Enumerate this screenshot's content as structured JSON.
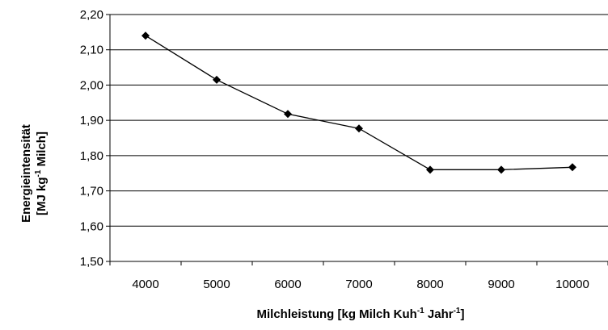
{
  "chart_data": {
    "type": "line",
    "x": [
      4000,
      5000,
      6000,
      7000,
      8000,
      9000,
      10000
    ],
    "x_tick_labels": [
      "4000",
      "5000",
      "6000",
      "7000",
      "8000",
      "9000",
      "10000"
    ],
    "series": [
      {
        "values": [
          2.14,
          2.015,
          1.918,
          1.877,
          1.76,
          1.76,
          1.767
        ],
        "color": "#000000",
        "marker": "diamond"
      }
    ],
    "ylim": [
      1.5,
      2.2
    ],
    "y_ticks": [
      1.5,
      1.6,
      1.7,
      1.8,
      1.9,
      2.0,
      2.1,
      2.2
    ],
    "y_tick_labels": [
      "1,50",
      "1,60",
      "1,70",
      "1,80",
      "1,90",
      "2,00",
      "2,10",
      "2,20"
    ],
    "xlabel": {
      "main": "Milchleistung [kg Milch Kuh",
      "sup1": "-1",
      "mid": " Jahr",
      "sup2": "-1",
      "end": "]"
    },
    "ylabel": {
      "line1": "Energieintensität",
      "line2_main": "[MJ kg",
      "line2_sup": "-1",
      "line2_end": " Milch]"
    },
    "grid": "horizontal",
    "legend": "none"
  }
}
